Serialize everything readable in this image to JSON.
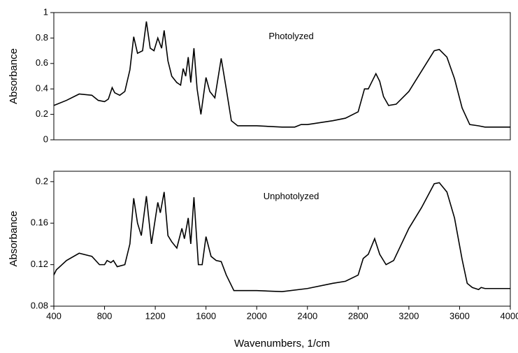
{
  "chart_data": [
    {
      "type": "line",
      "ylabel": "Absorbance",
      "annotation": "Photolyzed",
      "color": "#000000",
      "xlim": [
        400,
        4000
      ],
      "ylim": [
        0,
        1
      ],
      "yticks": [
        0,
        0.2,
        0.4,
        0.6,
        0.8,
        1
      ],
      "x": [
        400,
        500,
        600,
        700,
        750,
        800,
        830,
        860,
        880,
        920,
        960,
        1000,
        1030,
        1060,
        1100,
        1130,
        1160,
        1190,
        1220,
        1250,
        1270,
        1300,
        1330,
        1370,
        1400,
        1420,
        1440,
        1460,
        1480,
        1505,
        1530,
        1560,
        1600,
        1630,
        1670,
        1720,
        1760,
        1800,
        1850,
        2000,
        2200,
        2300,
        2350,
        2400,
        2600,
        2700,
        2800,
        2850,
        2880,
        2900,
        2940,
        2970,
        3000,
        3040,
        3100,
        3200,
        3300,
        3400,
        3440,
        3500,
        3560,
        3620,
        3680,
        3750,
        3800,
        4000
      ],
      "values": [
        0.27,
        0.31,
        0.36,
        0.35,
        0.31,
        0.3,
        0.32,
        0.41,
        0.37,
        0.35,
        0.38,
        0.55,
        0.81,
        0.68,
        0.7,
        0.93,
        0.72,
        0.7,
        0.8,
        0.72,
        0.86,
        0.62,
        0.5,
        0.45,
        0.43,
        0.56,
        0.5,
        0.65,
        0.45,
        0.72,
        0.4,
        0.2,
        0.49,
        0.38,
        0.33,
        0.64,
        0.4,
        0.15,
        0.11,
        0.11,
        0.1,
        0.1,
        0.12,
        0.12,
        0.15,
        0.17,
        0.22,
        0.4,
        0.4,
        0.44,
        0.52,
        0.46,
        0.34,
        0.27,
        0.28,
        0.38,
        0.54,
        0.7,
        0.71,
        0.65,
        0.48,
        0.25,
        0.12,
        0.11,
        0.1,
        0.1
      ]
    },
    {
      "type": "line",
      "ylabel": "Absorbance",
      "annotation": "Unphotolyzed",
      "xlabel": "Wavenumbers, 1/cm",
      "color": "#000000",
      "xlim": [
        400,
        4000
      ],
      "xticks": [
        400,
        800,
        1200,
        1600,
        2000,
        2400,
        2800,
        3200,
        3600,
        4000
      ],
      "ylim": [
        0.08,
        0.21
      ],
      "yticks": [
        0.08,
        0.12,
        0.16,
        0.2
      ],
      "x": [
        400,
        420,
        500,
        600,
        700,
        760,
        800,
        820,
        850,
        870,
        900,
        960,
        1000,
        1030,
        1060,
        1090,
        1130,
        1170,
        1220,
        1240,
        1270,
        1300,
        1330,
        1370,
        1410,
        1430,
        1460,
        1480,
        1505,
        1540,
        1570,
        1600,
        1640,
        1680,
        1720,
        1760,
        1820,
        2000,
        2200,
        2400,
        2600,
        2700,
        2800,
        2840,
        2880,
        2930,
        2970,
        3020,
        3080,
        3200,
        3300,
        3400,
        3440,
        3500,
        3560,
        3620,
        3660,
        3700,
        3750,
        3770,
        3800,
        4000
      ],
      "values": [
        0.11,
        0.115,
        0.124,
        0.131,
        0.128,
        0.12,
        0.12,
        0.124,
        0.122,
        0.124,
        0.118,
        0.12,
        0.14,
        0.184,
        0.16,
        0.148,
        0.186,
        0.14,
        0.18,
        0.17,
        0.19,
        0.148,
        0.142,
        0.136,
        0.155,
        0.145,
        0.165,
        0.14,
        0.185,
        0.12,
        0.12,
        0.147,
        0.128,
        0.124,
        0.123,
        0.11,
        0.095,
        0.095,
        0.094,
        0.097,
        0.102,
        0.104,
        0.11,
        0.126,
        0.13,
        0.145,
        0.13,
        0.12,
        0.124,
        0.155,
        0.175,
        0.198,
        0.199,
        0.19,
        0.165,
        0.125,
        0.102,
        0.098,
        0.096,
        0.098,
        0.097,
        0.097
      ]
    }
  ]
}
